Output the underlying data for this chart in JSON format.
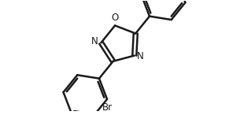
{
  "bg_color": "#ffffff",
  "line_color": "#1a1a1a",
  "lw": 1.8,
  "figsize": [
    2.96,
    1.46
  ],
  "dpi": 100,
  "font_size": 8.5,
  "br_font_size": 8.5,
  "o_label": "O",
  "n1_label": "N",
  "n2_label": "N",
  "br_label": "Br",
  "xlim": [
    -3.5,
    3.8
  ],
  "ylim": [
    -2.8,
    2.2
  ]
}
